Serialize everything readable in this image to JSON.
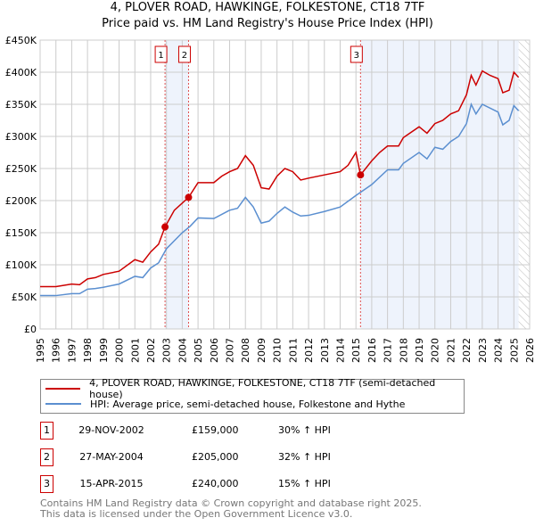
{
  "chart_data": {
    "type": "line",
    "title": "4, PLOVER ROAD, HAWKINGE, FOLKESTONE, CT18 7TF",
    "subtitle": "Price paid vs. HM Land Registry's House Price Index (HPI)",
    "xlim": [
      1995,
      2026
    ],
    "ylim": [
      0,
      450000
    ],
    "x_ticks": [
      "1995",
      "1996",
      "1997",
      "1998",
      "1999",
      "2000",
      "2001",
      "2002",
      "2003",
      "2004",
      "2005",
      "2006",
      "2007",
      "2008",
      "2009",
      "2010",
      "2011",
      "2012",
      "2013",
      "2014",
      "2015",
      "2016",
      "2017",
      "2018",
      "2019",
      "2020",
      "2021",
      "2022",
      "2023",
      "2024",
      "2025",
      "2026"
    ],
    "y_ticks": [
      {
        "v": 0,
        "label": "£0"
      },
      {
        "v": 50000,
        "label": "£50K"
      },
      {
        "v": 100000,
        "label": "£100K"
      },
      {
        "v": 150000,
        "label": "£150K"
      },
      {
        "v": 200000,
        "label": "£200K"
      },
      {
        "v": 250000,
        "label": "£250K"
      },
      {
        "v": 300000,
        "label": "£300K"
      },
      {
        "v": 350000,
        "label": "£350K"
      },
      {
        "v": 400000,
        "label": "£400K"
      },
      {
        "v": 450000,
        "label": "£450K"
      }
    ],
    "grid": true,
    "series": [
      {
        "name": "4, PLOVER ROAD, HAWKINGE, FOLKESTONE, CT18 7TF (semi-detached house)",
        "color": "#cc0000",
        "x": [
          1995,
          1996,
          1997,
          1997.5,
          1998,
          1998.5,
          1999,
          2000,
          2001,
          2001.5,
          2002,
          2002.5,
          2002.91,
          2003.5,
          2004.4,
          2005,
          2006,
          2006.5,
          2007,
          2007.5,
          2008,
          2008.5,
          2009,
          2009.5,
          2010,
          2010.5,
          2011,
          2011.5,
          2012,
          2013,
          2014,
          2014.5,
          2015,
          2015.29,
          2016,
          2016.5,
          2017,
          2017.7,
          2018,
          2019,
          2019.5,
          2020,
          2020.5,
          2021,
          2021.5,
          2022,
          2022.3,
          2022.6,
          2023,
          2023.5,
          2024,
          2024.3,
          2024.7,
          2025,
          2025.3
        ],
        "y": [
          66000,
          66000,
          70000,
          69000,
          78000,
          80000,
          85000,
          90000,
          108000,
          104000,
          120000,
          132000,
          159000,
          185000,
          205000,
          228000,
          228000,
          238000,
          245000,
          250000,
          270000,
          255000,
          220000,
          218000,
          238000,
          250000,
          245000,
          232000,
          235000,
          240000,
          245000,
          255000,
          275000,
          240000,
          262000,
          275000,
          285000,
          285000,
          298000,
          315000,
          305000,
          320000,
          325000,
          335000,
          340000,
          365000,
          395000,
          380000,
          402000,
          395000,
          390000,
          368000,
          372000,
          400000,
          392000
        ]
      },
      {
        "name": "HPI: Average price, semi-detached house, Folkestone and Hythe",
        "color": "#5b8fd0",
        "x": [
          1995,
          1996,
          1997,
          1997.5,
          1998,
          1998.5,
          1999,
          2000,
          2001,
          2001.5,
          2002,
          2002.5,
          2003,
          2004,
          2004.5,
          2005,
          2006,
          2007,
          2007.5,
          2008,
          2008.5,
          2009,
          2009.5,
          2010,
          2010.5,
          2011,
          2011.5,
          2012,
          2013,
          2014,
          2015,
          2016,
          2017,
          2017.7,
          2018,
          2019,
          2019.5,
          2020,
          2020.5,
          2021,
          2021.5,
          2022,
          2022.3,
          2022.6,
          2023,
          2024,
          2024.3,
          2024.7,
          2025,
          2025.3
        ],
        "y": [
          52000,
          52000,
          55000,
          55000,
          62000,
          63000,
          65000,
          70000,
          82000,
          80000,
          95000,
          103000,
          125000,
          150000,
          160000,
          173000,
          172000,
          185000,
          188000,
          205000,
          190000,
          165000,
          168000,
          180000,
          190000,
          182000,
          176000,
          177000,
          183000,
          190000,
          208000,
          225000,
          248000,
          248000,
          258000,
          275000,
          265000,
          283000,
          280000,
          292000,
          300000,
          320000,
          350000,
          335000,
          350000,
          338000,
          318000,
          325000,
          348000,
          340000
        ]
      }
    ],
    "shaded_ranges": [
      [
        2002.91,
        2004.4
      ],
      [
        2015.29,
        2025.3
      ]
    ],
    "hatched_range": [
      2025.3,
      2026
    ],
    "sales": [
      {
        "label": "1",
        "x": 2002.91,
        "y": 159000,
        "date": "29-NOV-2002",
        "price": "£159,000",
        "hpi": "30% ↑ HPI"
      },
      {
        "label": "2",
        "x": 2004.4,
        "y": 205000,
        "date": "27-MAY-2004",
        "price": "£205,000",
        "hpi": "32% ↑ HPI"
      },
      {
        "label": "3",
        "x": 2015.29,
        "y": 240000,
        "date": "15-APR-2015",
        "price": "£240,000",
        "hpi": "15% ↑ HPI"
      }
    ]
  },
  "footer": {
    "line1": "Contains HM Land Registry data © Crown copyright and database right 2025.",
    "line2": "This data is licensed under the Open Government Licence v3.0."
  }
}
